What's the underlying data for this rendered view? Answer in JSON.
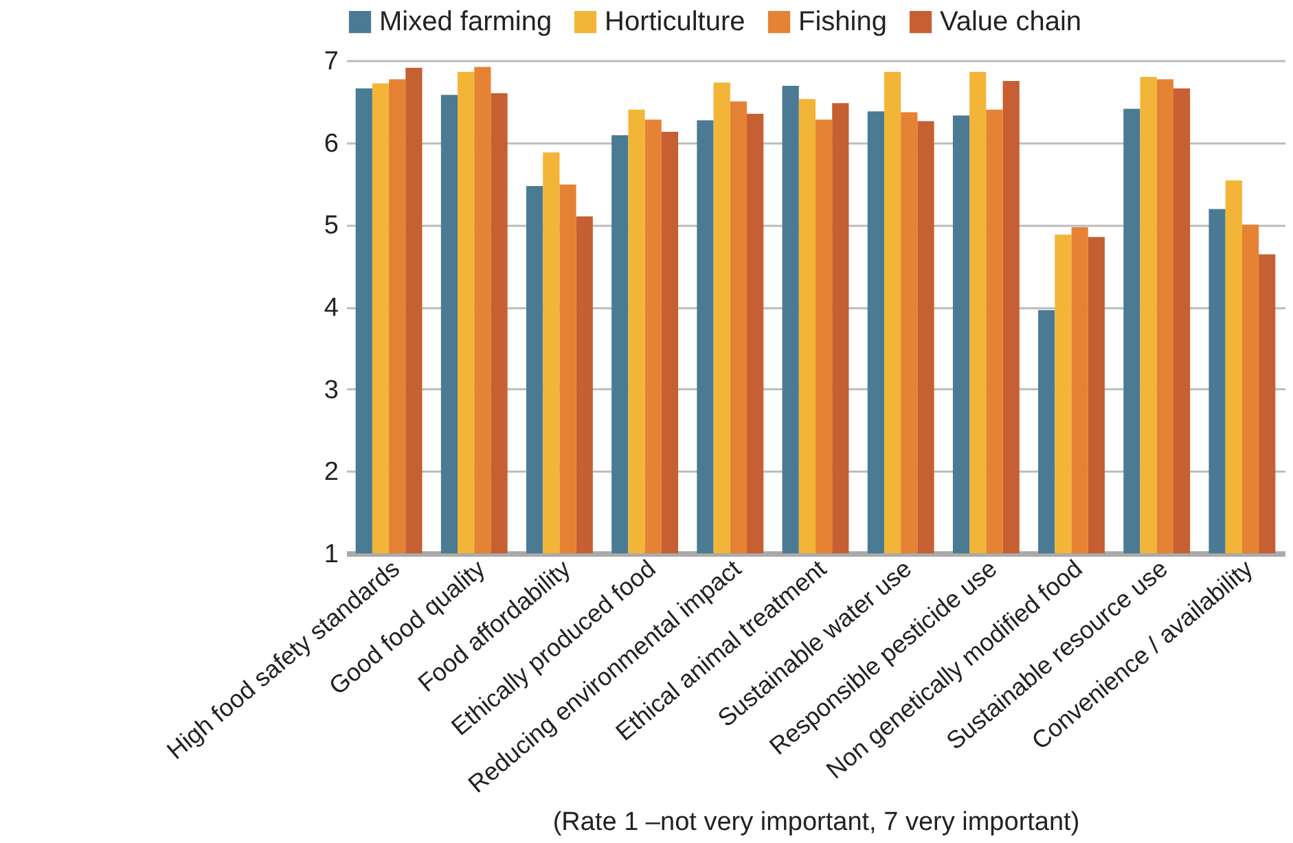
{
  "chart_data": {
    "type": "bar",
    "xlabel": "(Rate 1 –not very important, 7 very important)",
    "categories": [
      "High food safety standards",
      "Good food quality",
      "Food affordability",
      "Ethically produced food",
      "Reducing environmental impact",
      "Ethical animal treatment",
      "Sustainable water use",
      "Responsible pesticide use",
      "Non genetically modified food",
      "Sustainable resource use",
      "Convenience / availability"
    ],
    "series": [
      {
        "name": "Mixed farming",
        "color": "#4a7a94",
        "values": [
          6.66,
          6.58,
          5.47,
          6.09,
          6.27,
          6.69,
          6.38,
          6.33,
          3.96,
          6.41,
          5.19
        ]
      },
      {
        "name": "Horticulture",
        "color": "#f3b537",
        "values": [
          6.72,
          6.86,
          5.88,
          6.4,
          6.73,
          6.53,
          6.86,
          6.86,
          4.88,
          6.8,
          5.54
        ]
      },
      {
        "name": "Fishing",
        "color": "#e68234",
        "values": [
          6.77,
          6.92,
          5.49,
          6.28,
          6.5,
          6.28,
          6.37,
          6.4,
          4.97,
          6.77,
          5.0
        ]
      },
      {
        "name": "Value chain",
        "color": "#c65f31",
        "values": [
          6.91,
          6.6,
          5.1,
          6.13,
          6.35,
          6.48,
          6.26,
          6.75,
          4.85,
          6.66,
          4.64
        ]
      }
    ],
    "ylim": [
      1,
      7
    ],
    "yticks": [
      1,
      2,
      3,
      4,
      5,
      6,
      7
    ],
    "grid": "y",
    "legend": "top"
  }
}
